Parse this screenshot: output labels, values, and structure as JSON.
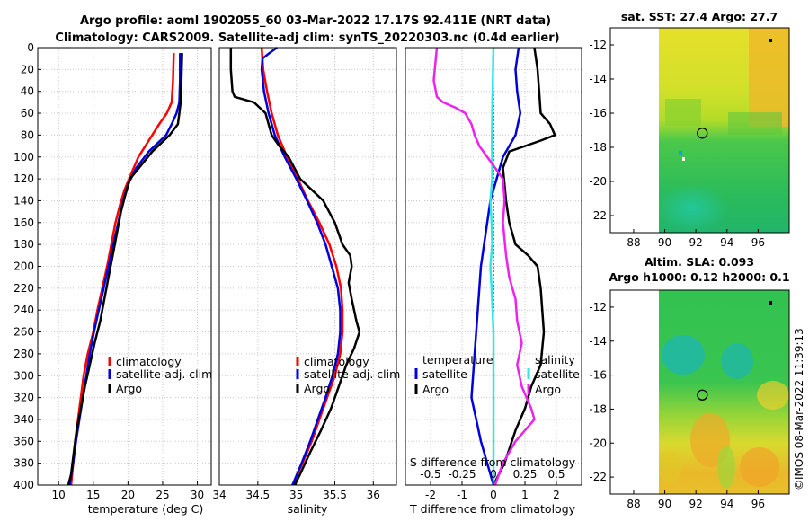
{
  "titles": {
    "line1": "Argo profile: aoml 1902055_60 03-Mar-2022 17.17S 92.411E (NRT data)",
    "line2": "Climatology: CARS2009. Satellite-adj clim: synTS_20220303.nc (0.4d earlier)"
  },
  "watermark": "©IMOS 08-Mar-2022 11:39:13",
  "colors": {
    "climatology": "#ff0000",
    "satellite": "#0000dd",
    "argo": "#000000",
    "sat_salinity": "#33e5e5",
    "argo_salinity": "#ee22ee"
  },
  "chart_data": [
    {
      "id": "temperature",
      "type": "line",
      "xlabel": "temperature (deg C)",
      "ylabel": "",
      "xlim": [
        7,
        32
      ],
      "ylim": [
        400,
        0
      ],
      "xticks": [
        10,
        15,
        20,
        25,
        30
      ],
      "yticks": [
        0,
        20,
        40,
        60,
        80,
        100,
        120,
        140,
        160,
        180,
        200,
        220,
        240,
        260,
        280,
        300,
        320,
        340,
        360,
        380,
        400
      ],
      "grid": true,
      "legend": [
        "climatology",
        "satellite-adj. clim",
        "Argo"
      ],
      "series": [
        {
          "name": "climatology",
          "color": "#ff0000",
          "points": [
            [
              26.6,
              5
            ],
            [
              26.5,
              30
            ],
            [
              26.3,
              50
            ],
            [
              25.6,
              60
            ],
            [
              24.5,
              70
            ],
            [
              23,
              85
            ],
            [
              21.5,
              100
            ],
            [
              20.5,
              115
            ],
            [
              19.5,
              130
            ],
            [
              18.8,
              145
            ],
            [
              18.2,
              160
            ],
            [
              17.6,
              180
            ],
            [
              17,
              200
            ],
            [
              16.3,
              220
            ],
            [
              15.6,
              240
            ],
            [
              15,
              260
            ],
            [
              14.2,
              280
            ],
            [
              13.6,
              300
            ],
            [
              13.2,
              320
            ],
            [
              12.8,
              340
            ],
            [
              12.4,
              360
            ],
            [
              12.1,
              380
            ],
            [
              11.8,
              400
            ]
          ]
        },
        {
          "name": "satellite-adj. clim",
          "color": "#0000dd",
          "points": [
            [
              27.5,
              5
            ],
            [
              27.5,
              30
            ],
            [
              27.4,
              50
            ],
            [
              27,
              60
            ],
            [
              26.3,
              70
            ],
            [
              25.5,
              80
            ],
            [
              23,
              95
            ],
            [
              21.2,
              110
            ],
            [
              20,
              125
            ],
            [
              19.3,
              140
            ],
            [
              18.6,
              160
            ],
            [
              17.9,
              180
            ],
            [
              17.2,
              200
            ],
            [
              16.5,
              220
            ],
            [
              15.8,
              240
            ],
            [
              15.1,
              260
            ],
            [
              14.5,
              280
            ],
            [
              14,
              300
            ],
            [
              13.5,
              320
            ],
            [
              13,
              340
            ],
            [
              12.5,
              360
            ],
            [
              12.1,
              380
            ],
            [
              11.6,
              400
            ]
          ]
        },
        {
          "name": "Argo",
          "color": "#000000",
          "points": [
            [
              27.8,
              5
            ],
            [
              27.7,
              30
            ],
            [
              27.6,
              50
            ],
            [
              27.4,
              60
            ],
            [
              27.2,
              70
            ],
            [
              26,
              80
            ],
            [
              23.5,
              95
            ],
            [
              21.6,
              110
            ],
            [
              20.3,
              120
            ],
            [
              19.6,
              135
            ],
            [
              19,
              150
            ],
            [
              18.4,
              170
            ],
            [
              17.8,
              190
            ],
            [
              17.2,
              210
            ],
            [
              16.6,
              230
            ],
            [
              16,
              250
            ],
            [
              15.2,
              270
            ],
            [
              14.5,
              290
            ],
            [
              13.8,
              310
            ],
            [
              13.2,
              330
            ],
            [
              12.6,
              350
            ],
            [
              12.2,
              370
            ],
            [
              11.8,
              390
            ],
            [
              11.4,
              400
            ]
          ]
        }
      ]
    },
    {
      "id": "salinity",
      "type": "line",
      "xlabel": "salinity",
      "xlim": [
        34,
        36.3
      ],
      "ylim": [
        400,
        0
      ],
      "xticks": [
        34,
        34.5,
        35,
        35.5,
        36
      ],
      "grid": true,
      "legend": [
        "climatology",
        "satellite-adj. clim",
        "Argo"
      ],
      "series": [
        {
          "name": "climatology",
          "color": "#ff0000",
          "points": [
            [
              34.55,
              0
            ],
            [
              34.57,
              20
            ],
            [
              34.62,
              40
            ],
            [
              34.68,
              60
            ],
            [
              34.76,
              80
            ],
            [
              34.88,
              100
            ],
            [
              35.02,
              120
            ],
            [
              35.15,
              140
            ],
            [
              35.3,
              160
            ],
            [
              35.43,
              180
            ],
            [
              35.52,
              200
            ],
            [
              35.58,
              220
            ],
            [
              35.6,
              240
            ],
            [
              35.6,
              260
            ],
            [
              35.57,
              280
            ],
            [
              35.5,
              300
            ],
            [
              35.4,
              320
            ],
            [
              35.3,
              340
            ],
            [
              35.2,
              360
            ],
            [
              35.08,
              380
            ],
            [
              34.95,
              400
            ]
          ]
        },
        {
          "name": "satellite-adj. clim",
          "color": "#0000dd",
          "points": [
            [
              34.75,
              0
            ],
            [
              34.65,
              5
            ],
            [
              34.56,
              10
            ],
            [
              34.55,
              20
            ],
            [
              34.58,
              40
            ],
            [
              34.64,
              60
            ],
            [
              34.72,
              80
            ],
            [
              34.85,
              100
            ],
            [
              35,
              120
            ],
            [
              35.14,
              140
            ],
            [
              35.27,
              160
            ],
            [
              35.38,
              180
            ],
            [
              35.46,
              200
            ],
            [
              35.54,
              220
            ],
            [
              35.57,
              240
            ],
            [
              35.57,
              260
            ],
            [
              35.54,
              280
            ],
            [
              35.47,
              300
            ],
            [
              35.38,
              320
            ],
            [
              35.28,
              340
            ],
            [
              35.18,
              360
            ],
            [
              35.07,
              380
            ],
            [
              34.95,
              400
            ]
          ]
        },
        {
          "name": "Argo",
          "color": "#000000",
          "points": [
            [
              34.15,
              0
            ],
            [
              34.15,
              20
            ],
            [
              34.17,
              40
            ],
            [
              34.2,
              45
            ],
            [
              34.45,
              50
            ],
            [
              34.6,
              60
            ],
            [
              34.68,
              80
            ],
            [
              34.78,
              90
            ],
            [
              34.9,
              100
            ],
            [
              35.05,
              120
            ],
            [
              35.2,
              130
            ],
            [
              35.35,
              140
            ],
            [
              35.5,
              160
            ],
            [
              35.6,
              180
            ],
            [
              35.7,
              190
            ],
            [
              35.72,
              200
            ],
            [
              35.68,
              215
            ],
            [
              35.72,
              230
            ],
            [
              35.78,
              250
            ],
            [
              35.82,
              260
            ],
            [
              35.75,
              275
            ],
            [
              35.65,
              290
            ],
            [
              35.55,
              310
            ],
            [
              35.45,
              330
            ],
            [
              35.32,
              350
            ],
            [
              35.18,
              370
            ],
            [
              35.05,
              390
            ],
            [
              34.98,
              400
            ]
          ]
        }
      ]
    },
    {
      "id": "difference",
      "type": "line",
      "xlabel": "T difference from climatology",
      "xlabel_top": "S difference from climatology",
      "xlim": [
        -2.8,
        2.8
      ],
      "ylim": [
        400,
        0
      ],
      "xticks": [
        -2,
        -1,
        0,
        1,
        2
      ],
      "xticks_top_values": [
        -0.5,
        -0.25,
        0,
        0.25,
        0.5
      ],
      "xticks_top_labels": [
        "-0.5",
        "-0.25",
        "0",
        "0.25",
        "0.5"
      ],
      "legend_temperature": {
        "title": "temperature",
        "entries": [
          "satellite",
          "Argo"
        ]
      },
      "legend_salinity": {
        "title": "salinity",
        "entries": [
          "satellite",
          "Argo"
        ]
      },
      "series": [
        {
          "name": "temperature satellite",
          "color": "#0000dd",
          "points": [
            [
              0.8,
              0
            ],
            [
              0.7,
              20
            ],
            [
              0.75,
              40
            ],
            [
              0.85,
              60
            ],
            [
              0.7,
              80
            ],
            [
              0.5,
              90
            ],
            [
              0.3,
              100
            ],
            [
              0.1,
              120
            ],
            [
              -0.1,
              140
            ],
            [
              -0.2,
              160
            ],
            [
              -0.3,
              180
            ],
            [
              -0.4,
              200
            ],
            [
              -0.5,
              240
            ],
            [
              -0.6,
              280
            ],
            [
              -0.7,
              320
            ],
            [
              -0.4,
              360
            ],
            [
              -0.1,
              390
            ],
            [
              0,
              400
            ]
          ]
        },
        {
          "name": "temperature Argo",
          "color": "#000000",
          "points": [
            [
              1.3,
              0
            ],
            [
              1.4,
              20
            ],
            [
              1.45,
              40
            ],
            [
              1.5,
              60
            ],
            [
              1.8,
              70
            ],
            [
              1.95,
              80
            ],
            [
              1.5,
              85
            ],
            [
              0.5,
              95
            ],
            [
              0.3,
              110
            ],
            [
              0.4,
              140
            ],
            [
              0.5,
              160
            ],
            [
              0.7,
              180
            ],
            [
              1.1,
              190
            ],
            [
              1.4,
              200
            ],
            [
              1.5,
              220
            ],
            [
              1.6,
              260
            ],
            [
              1.5,
              290
            ],
            [
              1.2,
              310
            ],
            [
              1,
              330
            ],
            [
              0.7,
              350
            ],
            [
              0.35,
              380
            ],
            [
              0,
              400
            ]
          ]
        },
        {
          "name": "salinity satellite",
          "color": "#33e5e5",
          "points": [
            [
              0,
              0
            ],
            [
              -0.03,
              40
            ],
            [
              -0.05,
              80
            ],
            [
              -0.04,
              120
            ],
            [
              -0.1,
              140
            ],
            [
              -0.06,
              160
            ],
            [
              -0.04,
              180
            ],
            [
              -0.1,
              200
            ],
            [
              -0.06,
              220
            ],
            [
              0,
              260
            ],
            [
              0,
              400
            ]
          ]
        },
        {
          "name": "salinity Argo",
          "color": "#ee22ee",
          "points": [
            [
              -1.8,
              0
            ],
            [
              -1.9,
              30
            ],
            [
              -1.8,
              45
            ],
            [
              -1.6,
              50
            ],
            [
              -1.2,
              55
            ],
            [
              -0.9,
              60
            ],
            [
              -0.7,
              70
            ],
            [
              -0.6,
              80
            ],
            [
              -0.45,
              90
            ],
            [
              0.05,
              110
            ],
            [
              0.3,
              120
            ],
            [
              0.35,
              140
            ],
            [
              0.3,
              160
            ],
            [
              0.4,
              190
            ],
            [
              0.5,
              210
            ],
            [
              0.7,
              230
            ],
            [
              0.75,
              250
            ],
            [
              0.9,
              270
            ],
            [
              0.75,
              290
            ],
            [
              0.9,
              310
            ],
            [
              1.2,
              330
            ],
            [
              1.3,
              340
            ],
            [
              0.7,
              360
            ],
            [
              0.3,
              380
            ],
            [
              0.05,
              400
            ]
          ]
        }
      ]
    },
    {
      "id": "sst_map",
      "type": "heatmap",
      "title": "sat. SST: 27.4 Argo: 27.7",
      "xticks": [
        88,
        90,
        92,
        94,
        96
      ],
      "yticks": [
        -12,
        -14,
        -16,
        -18,
        -20,
        -22
      ],
      "xlim": [
        86.5,
        98
      ],
      "ylim": [
        -23,
        -11
      ],
      "marker": {
        "lon": 92.411,
        "lat": -17.17
      }
    },
    {
      "id": "sla_map",
      "type": "heatmap",
      "title_line1": "Altim. SLA: 0.093",
      "title_line2": "Argo h1000: 0.12 h2000: 0.1",
      "xticks": [
        88,
        90,
        92,
        94,
        96
      ],
      "yticks": [
        -12,
        -14,
        -16,
        -18,
        -20,
        -22
      ],
      "xlim": [
        86.5,
        98
      ],
      "ylim": [
        -23,
        -11
      ],
      "marker": {
        "lon": 92.411,
        "lat": -17.17
      }
    }
  ]
}
